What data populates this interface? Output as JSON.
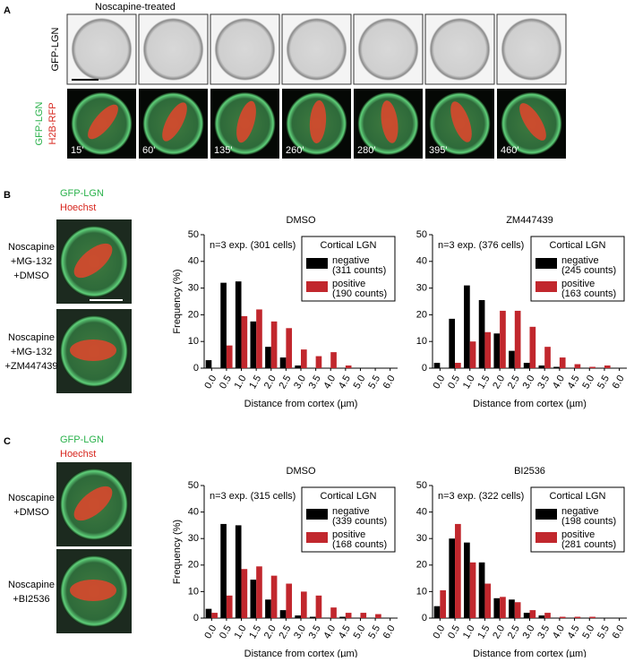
{
  "figure": {
    "panel_a": {
      "letter": "A",
      "title": "Noscapine-treated",
      "row1_label": "GFP-LGN",
      "row2_label_green": "GFP-LGN",
      "row2_label_red": "H2B-RFP",
      "times": [
        "15'",
        "60'",
        "135'",
        "260'",
        "280'",
        "395'",
        "460'"
      ]
    },
    "panel_b": {
      "letter": "B",
      "stain_green": "GFP-LGN",
      "stain_red": "Hoechst",
      "conditions": [
        [
          "Noscapine",
          "+MG-132",
          "+DMSO"
        ],
        [
          "Noscapine",
          "+MG-132",
          "+ZM447439"
        ]
      ]
    },
    "panel_c": {
      "letter": "C",
      "stain_green": "GFP-LGN",
      "stain_red": "Hoechst",
      "conditions": [
        [
          "Noscapine",
          "+DMSO"
        ],
        [
          "Noscapine",
          "+BI2536"
        ]
      ]
    }
  },
  "chart_data": [
    {
      "type": "bar",
      "title": "DMSO",
      "annotation": "n=3 exp. (301 cells)",
      "xlabel": "Distance from cortex (µm)",
      "ylabel": "Frequency (%)",
      "categories": [
        "0.0",
        "0.5",
        "1.0",
        "1.5",
        "2.0",
        "2.5",
        "3.0",
        "3.5",
        "4.0",
        "4.5",
        "5.0",
        "5.5",
        "6.0"
      ],
      "ylim": [
        0,
        50
      ],
      "yticks": [
        0,
        10,
        20,
        30,
        40,
        50
      ],
      "legend_title": "Cortical LGN",
      "legend": "upper right",
      "series": [
        {
          "name": "negative",
          "count_label": "(311 counts)",
          "color": "#000000",
          "values": [
            3,
            32,
            32.5,
            17.5,
            8,
            4,
            1,
            0,
            0,
            0,
            0,
            0,
            0
          ]
        },
        {
          "name": "positive",
          "count_label": "(190 counts)",
          "color": "#c1272d",
          "values": [
            0,
            8.5,
            19.5,
            22,
            17.5,
            15,
            7,
            4.5,
            6,
            1,
            0,
            0,
            0
          ]
        }
      ]
    },
    {
      "type": "bar",
      "title": "ZM447439",
      "annotation": "n=3 exp. (376 cells)",
      "xlabel": "Distance from cortex (µm)",
      "categories": [
        "0.0",
        "0.5",
        "1.0",
        "1.5",
        "2.0",
        "2.5",
        "3.0",
        "3.5",
        "4.0",
        "4.5",
        "5.0",
        "5.5",
        "6.0"
      ],
      "ylim": [
        0,
        50
      ],
      "yticks": [
        0,
        10,
        20,
        30,
        40,
        50
      ],
      "legend_title": "Cortical LGN",
      "legend": "upper right",
      "series": [
        {
          "name": "negative",
          "count_label": "(245 counts)",
          "color": "#000000",
          "values": [
            2,
            18.5,
            31,
            25.5,
            13,
            6.5,
            2,
            1,
            0.5,
            0,
            0,
            0,
            0
          ]
        },
        {
          "name": "positive",
          "count_label": "(163 counts)",
          "color": "#c1272d",
          "values": [
            0,
            2,
            10,
            13.5,
            21.5,
            21.5,
            15.5,
            8,
            4,
            1.5,
            0.5,
            1,
            0
          ]
        }
      ]
    },
    {
      "type": "bar",
      "title": "DMSO",
      "annotation": "n=3 exp. (315 cells)",
      "xlabel": "Distance from cortex (µm)",
      "ylabel": "Frequency (%)",
      "categories": [
        "0.0",
        "0.5",
        "1.0",
        "1.5",
        "2.0",
        "2.5",
        "3.0",
        "3.5",
        "4.0",
        "4.5",
        "5.0",
        "5.5",
        "6.0"
      ],
      "ylim": [
        0,
        50
      ],
      "yticks": [
        0,
        10,
        20,
        30,
        40,
        50
      ],
      "legend_title": "Cortical LGN",
      "legend": "upper right",
      "series": [
        {
          "name": "negative",
          "count_label": "(339 counts)",
          "color": "#000000",
          "values": [
            3.5,
            35.5,
            35,
            14.5,
            7,
            3,
            1,
            0.5,
            0,
            0.5,
            0,
            0,
            0
          ]
        },
        {
          "name": "positive",
          "count_label": "(168 counts)",
          "color": "#c1272d",
          "values": [
            2,
            8.5,
            18.5,
            19.5,
            16,
            13,
            10,
            8.5,
            4,
            2,
            2,
            1.5,
            0
          ]
        }
      ]
    },
    {
      "type": "bar",
      "title": "BI2536",
      "annotation": "n=3 exp. (322 cells)",
      "xlabel": "Distance from cortex (µm)",
      "categories": [
        "0.0",
        "0.5",
        "1.0",
        "1.5",
        "2.0",
        "2.5",
        "3.0",
        "3.5",
        "4.0",
        "4.5",
        "5.0",
        "5.5",
        "6.0"
      ],
      "ylim": [
        0,
        50
      ],
      "yticks": [
        0,
        10,
        20,
        30,
        40,
        50
      ],
      "legend_title": "Cortical LGN",
      "legend": "upper right",
      "series": [
        {
          "name": "negative",
          "count_label": "(198 counts)",
          "color": "#000000",
          "values": [
            4.5,
            30,
            28.5,
            21,
            7.5,
            7,
            2,
            1,
            0,
            0,
            0,
            0,
            0
          ]
        },
        {
          "name": "positive",
          "count_label": "(281 counts)",
          "color": "#c1272d",
          "values": [
            10.5,
            35.5,
            21,
            13,
            8,
            6,
            3,
            2,
            0.5,
            0.5,
            0.5,
            0,
            0
          ]
        }
      ]
    }
  ]
}
